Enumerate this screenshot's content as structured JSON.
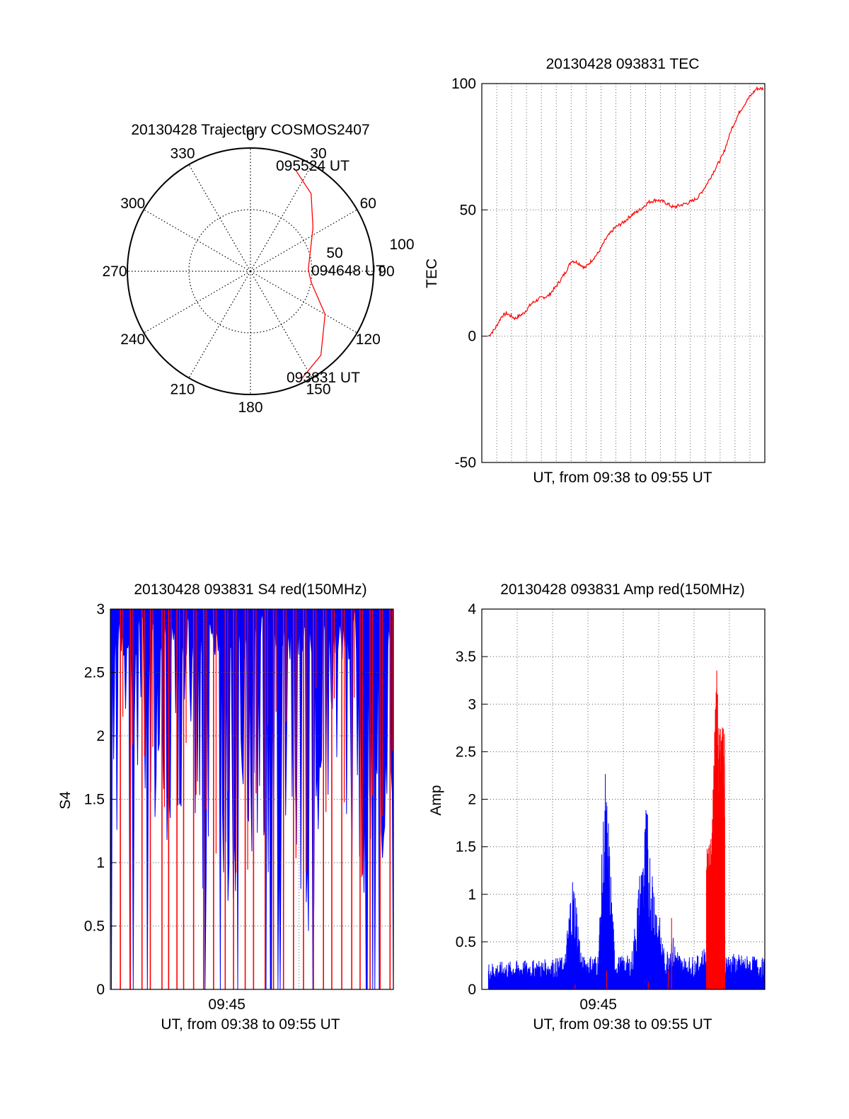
{
  "chart_data": [
    {
      "type": "polar",
      "title": "20130428 Trajectory COSMOS2407",
      "angle_labels": [
        "0",
        "30",
        "60",
        "90",
        "120",
        "150",
        "180",
        "210",
        "240",
        "270",
        "300",
        "330"
      ],
      "radial_labels": [
        "50",
        "100"
      ],
      "rlim": [
        0,
        100
      ],
      "trajectory": {
        "color": "#ff0000",
        "points": [
          {
            "azimuth": 155,
            "zenith": 97
          },
          {
            "azimuth": 140,
            "zenith": 89
          },
          {
            "azimuth": 120,
            "zenith": 70
          },
          {
            "azimuth": 100,
            "zenith": 50
          },
          {
            "azimuth": 88,
            "zenith": 47
          },
          {
            "azimuth": 75,
            "zenith": 50
          },
          {
            "azimuth": 55,
            "zenith": 62
          },
          {
            "azimuth": 38,
            "zenith": 80
          },
          {
            "azimuth": 24,
            "zenith": 90
          }
        ]
      },
      "annotations": [
        "095524 UT",
        "094648 UT",
        "093831 UT"
      ]
    },
    {
      "type": "line",
      "title": "20130428 093831 TEC",
      "xlabel": "UT, from 09:38 to 09:55 UT",
      "ylabel": "TEC",
      "ylim": [
        -50,
        100
      ],
      "yticks": [
        "-50",
        "0",
        "50",
        "100"
      ],
      "xlim": [
        0,
        17
      ],
      "grid": true,
      "series": [
        {
          "color": "#ff0000",
          "x": [
            0.4,
            0.8,
            1.2,
            1.5,
            2.0,
            2.5,
            3.0,
            3.5,
            4.0,
            4.5,
            5.0,
            5.4,
            5.8,
            6.2,
            6.6,
            7.0,
            7.5,
            8.0,
            8.5,
            9.0,
            9.5,
            10.0,
            10.5,
            11.0,
            11.5,
            12.0,
            12.5,
            13.0,
            13.5,
            14.0,
            14.5,
            15.0,
            15.5,
            16.0,
            16.5,
            16.9
          ],
          "y": [
            0,
            3,
            8,
            9,
            7,
            9,
            13,
            15,
            16,
            20,
            25,
            30,
            29,
            27,
            30,
            33,
            39,
            43,
            45,
            48,
            50,
            53,
            54,
            53,
            51,
            52,
            53,
            55,
            60,
            66,
            72,
            82,
            89,
            94,
            98,
            98
          ]
        }
      ]
    },
    {
      "type": "area",
      "title": "20130428 093831 S4 red(150MHz)",
      "xlabel": "UT, from 09:38 to 09:55 UT",
      "ylabel": "S4",
      "ylim": [
        0,
        3
      ],
      "yticks": [
        "0",
        "0.5",
        "1",
        "1.5",
        "2",
        "2.5",
        "3"
      ],
      "xlim": [
        0,
        17
      ],
      "xtick": {
        "label": "09:45",
        "at": 7
      },
      "grid": true,
      "series": [
        {
          "name": "",
          "color": "#0000ff",
          "x": [
            0,
            1,
            2,
            3,
            4,
            5,
            6,
            7,
            8,
            9,
            10,
            11,
            12,
            13,
            14,
            15,
            16,
            17
          ],
          "y": [
            2.4,
            2.2,
            2.5,
            2.1,
            2.3,
            2.6,
            1.2,
            1.5,
            2.2,
            1.6,
            2.4,
            2.0,
            1.4,
            2.3,
            2.4,
            1.7,
            2.0,
            2.3
          ]
        },
        {
          "name": "",
          "color": "#ff0000",
          "spikes": [
            0.6,
            1.2,
            1.9,
            2.4,
            3.1,
            3.5,
            4.0,
            4.4,
            5.0,
            5.6,
            6.2,
            6.9,
            7.4,
            8.1,
            8.6,
            9.3,
            9.8,
            10.4,
            11.0,
            11.6,
            12.2,
            12.8,
            13.3,
            13.9,
            14.5,
            15.0,
            15.6,
            16.2,
            16.8
          ]
        }
      ]
    },
    {
      "type": "area",
      "title": "20130428 093831 Amp red(150MHz)",
      "xlabel": "UT, from 09:38 to 09:55 UT",
      "ylabel": "Amp",
      "ylim": [
        0,
        4
      ],
      "yticks": [
        "0",
        "0.5",
        "1",
        "1.5",
        "2",
        "2.5",
        "3",
        "3.5",
        "4"
      ],
      "xlim": [
        0,
        17
      ],
      "xtick": {
        "label": "09:45",
        "at": 7
      },
      "grid": true,
      "series": [
        {
          "name": "",
          "color": "#0000ff",
          "x": [
            0,
            2,
            4,
            5,
            5.4,
            5.6,
            6,
            7,
            7.4,
            7.6,
            8,
            9,
            9.9,
            10.1,
            11,
            11.4,
            12,
            13,
            13.5,
            14,
            15,
            16,
            17
          ],
          "y": [
            0.28,
            0.3,
            0.32,
            0.35,
            1.26,
            1.15,
            0.35,
            0.38,
            2.4,
            1.85,
            0.35,
            0.36,
            2.02,
            1.55,
            0.35,
            0.6,
            0.34,
            0.36,
            0.5,
            0.4,
            0.38,
            0.36,
            0.33
          ]
        },
        {
          "name": "",
          "color": "#ff0000",
          "x": [
            5.6,
            7.5,
            10.0,
            11.2,
            11.4,
            13.8,
            14.1,
            14.3
          ],
          "y": [
            0.05,
            0.2,
            0.08,
            0.2,
            0.75,
            1.6,
            3.4,
            2.8
          ]
        }
      ]
    }
  ],
  "colors": {
    "red": "#ff0000",
    "blue": "#0000ff",
    "axis": "#000000"
  }
}
